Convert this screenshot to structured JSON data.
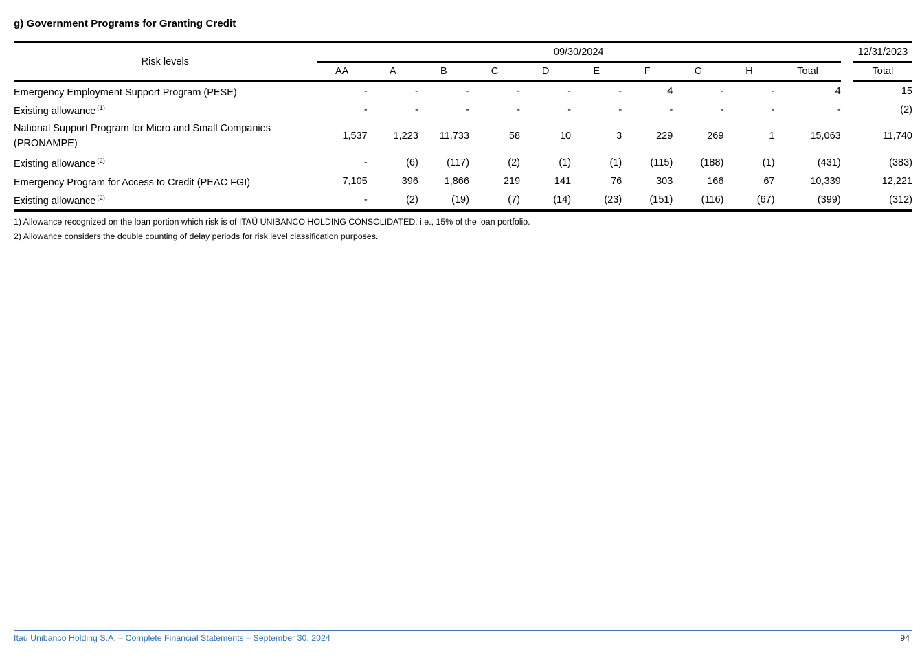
{
  "title": "g) Government Programs for Granting Credit",
  "table": {
    "risk_levels_label": "Risk levels",
    "period_current": "09/30/2024",
    "period_prior": "12/31/2023",
    "columns": [
      "AA",
      "A",
      "B",
      "C",
      "D",
      "E",
      "F",
      "G",
      "H",
      "Total"
    ],
    "prior_column": "Total",
    "rows": [
      {
        "label": "Emergency Employment Support Program (PESE)",
        "sup": "",
        "values": [
          "-",
          "-",
          "-",
          "-",
          "-",
          "-",
          "4",
          "-",
          "-",
          "4"
        ],
        "prior": "15"
      },
      {
        "label": "Existing allowance",
        "sup": "(1)",
        "values": [
          "-",
          "-",
          "-",
          "-",
          "-",
          "-",
          "-",
          "-",
          "-",
          "-"
        ],
        "prior": "(2)"
      },
      {
        "label": "National Support Program for Micro and Small Companies (PRONAMPE)",
        "sup": "",
        "values": [
          "1,537",
          "1,223",
          "11,733",
          "58",
          "10",
          "3",
          "229",
          "269",
          "1",
          "15,063"
        ],
        "prior": "11,740"
      },
      {
        "label": "Existing allowance",
        "sup": "(2)",
        "values": [
          "-",
          "(6)",
          "(117)",
          "(2)",
          "(1)",
          "(1)",
          "(115)",
          "(188)",
          "(1)",
          "(431)"
        ],
        "prior": "(383)"
      },
      {
        "label": "Emergency Program for Access to Credit (PEAC FGI)",
        "sup": "",
        "values": [
          "7,105",
          "396",
          "1,866",
          "219",
          "141",
          "76",
          "303",
          "166",
          "67",
          "10,339"
        ],
        "prior": "12,221"
      },
      {
        "label": "Existing allowance",
        "sup": "(2)",
        "values": [
          "-",
          "(2)",
          "(19)",
          "(7)",
          "(14)",
          "(23)",
          "(151)",
          "(116)",
          "(67)",
          "(399)"
        ],
        "prior": "(312)"
      }
    ]
  },
  "footnotes": [
    "1) Allowance recognized on the loan portion which risk is of ITAÚ UNIBANCO HOLDING CONSOLIDATED, i.e., 15% of the loan portfolio.",
    "2) Allowance considers the double counting of delay periods for risk level classification purposes."
  ],
  "footer": {
    "left": "Itaú Unibanco Holding S.A. – Complete Financial Statements – September 30, 2024",
    "page": "94"
  },
  "colors": {
    "footer_line": "#4472A8",
    "footer_text": "#2E74B5",
    "page_number": "#1F3864"
  }
}
